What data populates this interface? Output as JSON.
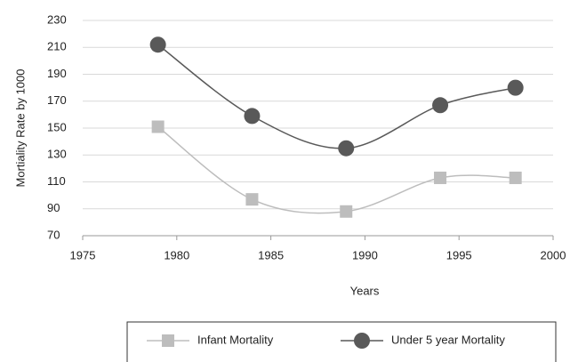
{
  "chart_data": {
    "type": "line",
    "x_label": "Years",
    "y_label": "Mortiality Rate by 1000",
    "x": [
      1979,
      1984,
      1989,
      1994,
      1998
    ],
    "series": [
      {
        "name": "Infant Mortality",
        "color": "#bdbdbd",
        "marker": "square",
        "values": [
          151,
          97,
          88,
          113,
          113
        ]
      },
      {
        "name": "Under 5 year Mortality",
        "color": "#595959",
        "marker": "circle",
        "values": [
          212,
          159,
          135,
          167,
          180
        ]
      }
    ],
    "xlim": [
      1975,
      2000
    ],
    "xticks": [
      1975,
      1980,
      1985,
      1990,
      1995,
      2000
    ],
    "ylim": [
      70,
      230
    ],
    "yticks": [
      70,
      90,
      110,
      130,
      150,
      170,
      190,
      210,
      230
    ],
    "grid": true,
    "smooth": true,
    "legend": "bottom"
  }
}
